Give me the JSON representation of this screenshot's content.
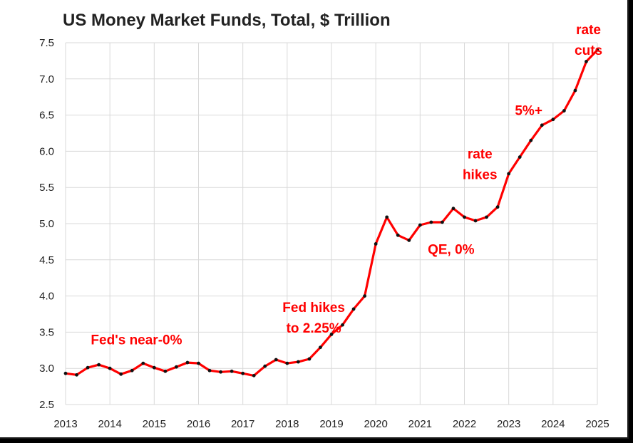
{
  "chart_data": {
    "type": "line",
    "title": "US Money Market Funds, Total, $ Trillion",
    "xlabel": "",
    "ylabel": "",
    "xlim": [
      2013,
      2025
    ],
    "ylim": [
      2.5,
      7.5
    ],
    "y_ticks": [
      "2.5",
      "3.0",
      "3.5",
      "4.0",
      "4.5",
      "5.0",
      "5.5",
      "6.0",
      "6.5",
      "7.0",
      "7.5"
    ],
    "x_ticks": [
      "2013",
      "2014",
      "2015",
      "2016",
      "2017",
      "2018",
      "2019",
      "2020",
      "2021",
      "2022",
      "2023",
      "2024",
      "2025"
    ],
    "grid": true,
    "series": [
      {
        "color": "#ff0000",
        "marker_color": "#111111",
        "x": [
          2013.0,
          2013.25,
          2013.5,
          2013.75,
          2014.0,
          2014.25,
          2014.5,
          2014.75,
          2015.0,
          2015.25,
          2015.5,
          2015.75,
          2016.0,
          2016.25,
          2016.5,
          2016.75,
          2017.0,
          2017.25,
          2017.5,
          2017.75,
          2018.0,
          2018.25,
          2018.5,
          2018.75,
          2019.0,
          2019.25,
          2019.5,
          2019.75,
          2020.0,
          2020.25,
          2020.5,
          2020.75,
          2021.0,
          2021.25,
          2021.5,
          2021.75,
          2022.0,
          2022.25,
          2022.5,
          2022.75,
          2023.0,
          2023.25,
          2023.5,
          2023.75,
          2024.0,
          2024.25,
          2024.5,
          2024.75,
          2025.0
        ],
        "values": [
          2.93,
          2.91,
          3.01,
          3.05,
          3.0,
          2.92,
          2.97,
          3.07,
          3.01,
          2.96,
          3.02,
          3.08,
          3.07,
          2.97,
          2.95,
          2.96,
          2.93,
          2.9,
          3.03,
          3.12,
          3.07,
          3.09,
          3.13,
          3.29,
          3.47,
          3.6,
          3.82,
          4.0,
          4.72,
          5.09,
          4.84,
          4.77,
          4.98,
          5.02,
          5.02,
          5.21,
          5.09,
          5.04,
          5.09,
          5.23,
          5.69,
          5.92,
          6.15,
          6.36,
          6.44,
          6.56,
          6.84,
          7.24,
          7.4
        ]
      }
    ],
    "annotations": [
      {
        "lines": [
          "Fed's near-0%"
        ],
        "x": 2014.6,
        "y": 3.33
      },
      {
        "lines": [
          "Fed hikes",
          "to 2.25%"
        ],
        "x": 2018.6,
        "y": 3.78
      },
      {
        "lines": [
          "QE, 0%"
        ],
        "x": 2021.7,
        "y": 4.58
      },
      {
        "lines": [
          "rate",
          "hikes"
        ],
        "x": 2022.35,
        "y": 5.9
      },
      {
        "lines": [
          "5%+"
        ],
        "x": 2023.45,
        "y": 6.5
      },
      {
        "lines": [
          "rate",
          "cuts"
        ],
        "x": 2024.8,
        "y": 7.62
      }
    ]
  }
}
